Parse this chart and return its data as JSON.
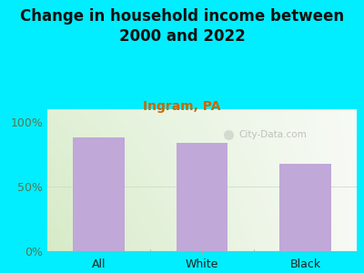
{
  "title": "Change in household income between\n2000 and 2022",
  "subtitle": "Ingram, PA",
  "categories": [
    "All",
    "White",
    "Black"
  ],
  "values": [
    88,
    84,
    68
  ],
  "bar_color": "#c0a8d8",
  "background_color": "#00eeff",
  "plot_bg_color_left": "#d8ecc8",
  "plot_bg_color_right": "#f8f8f4",
  "title_fontsize": 12,
  "subtitle_fontsize": 10,
  "tick_fontsize": 9,
  "ytick_color": "#557755",
  "xtick_color": "#222222",
  "subtitle_color": "#cc6600",
  "yticks": [
    0,
    50,
    100
  ],
  "ylim": [
    0,
    110
  ],
  "watermark": "City-Data.com"
}
